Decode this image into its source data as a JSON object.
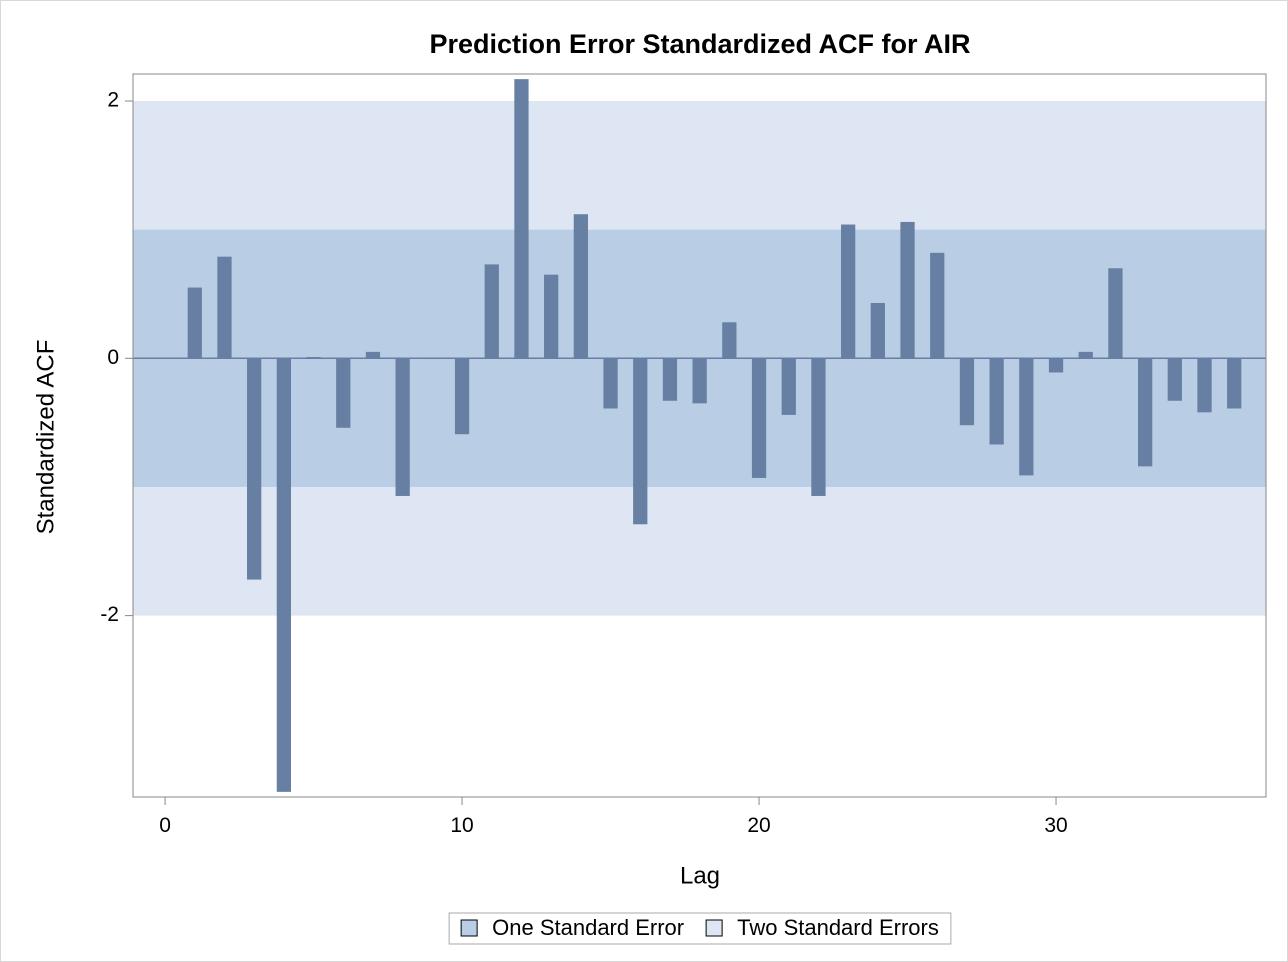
{
  "chart_data": {
    "type": "bar",
    "title": "Prediction Error Standardized ACF for AIR",
    "x_label": "Lag",
    "y_label": "Standardized ACF",
    "x": [
      1,
      2,
      3,
      4,
      5,
      6,
      7,
      8,
      9,
      10,
      11,
      12,
      13,
      14,
      15,
      16,
      17,
      18,
      19,
      20,
      21,
      22,
      23,
      24,
      25,
      26,
      27,
      28,
      29,
      30,
      31,
      32,
      33,
      34,
      35,
      36
    ],
    "values": [
      0.55,
      0.79,
      -1.72,
      -3.37,
      0.01,
      -0.54,
      0.05,
      -1.07,
      0,
      -0.59,
      0.73,
      2.17,
      0.65,
      1.12,
      -0.39,
      -1.29,
      -0.33,
      -0.35,
      0.28,
      -0.93,
      -0.44,
      -1.07,
      1.04,
      0.43,
      1.06,
      0.82,
      -0.52,
      -0.67,
      -0.91,
      -0.11,
      0.05,
      0.7,
      -0.84,
      -0.33,
      -0.42,
      -0.39
    ],
    "color": "#667fa2",
    "bands": [
      {
        "name": "One Standard Error",
        "color": "#b9cde5",
        "lower": -1,
        "upper": 1
      },
      {
        "name": "Two Standard Errors",
        "color": "#dde6f2",
        "lower": -2,
        "upper": 2
      }
    ],
    "xlim": [
      -1.08,
      37.07
    ],
    "ylim": [
      -3.41,
      2.21
    ],
    "xticks": [
      0,
      10,
      20,
      30
    ],
    "yticks": [
      -2,
      0,
      2
    ]
  }
}
